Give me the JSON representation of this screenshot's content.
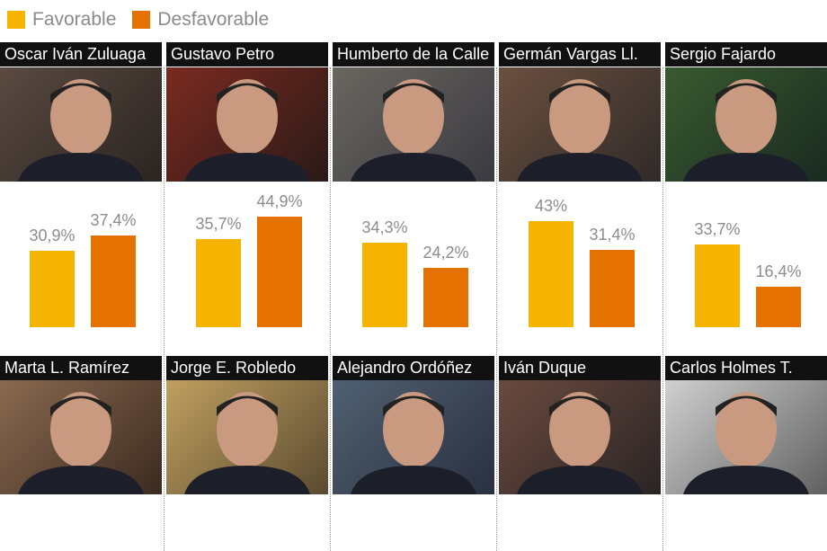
{
  "legend": [
    {
      "label": "Favorable",
      "color": "#F5B400"
    },
    {
      "label": "Desfavorable",
      "color": "#E57200"
    }
  ],
  "chart_data": {
    "type": "bar",
    "series": [
      {
        "name": "Favorable",
        "values": [
          30.9,
          35.7,
          34.3,
          43,
          33.7
        ]
      },
      {
        "name": "Desfavorable",
        "values": [
          37.4,
          44.9,
          24.2,
          31.4,
          16.4
        ]
      }
    ],
    "categories": [
      "Oscar Iván Zuluaga",
      "Gustavo Petro",
      "Humberto de la Calle",
      "Germán Vargas Ll.",
      "Sergio Fajardo"
    ],
    "labels": [
      [
        "30,9%",
        "37,4%"
      ],
      [
        "35,7%",
        "44,9%"
      ],
      [
        "34,3%",
        "24,2%"
      ],
      [
        "43%",
        "31,4%"
      ],
      [
        "33,7%",
        "16,4%"
      ]
    ],
    "colors": [
      "#F5B400",
      "#E57200"
    ]
  },
  "row2": [
    "Marta L. Ramírez",
    "Jorge E. Robledo",
    "Alejandro Ordóñez",
    "Iván Duque",
    "Carlos Holmes T."
  ]
}
